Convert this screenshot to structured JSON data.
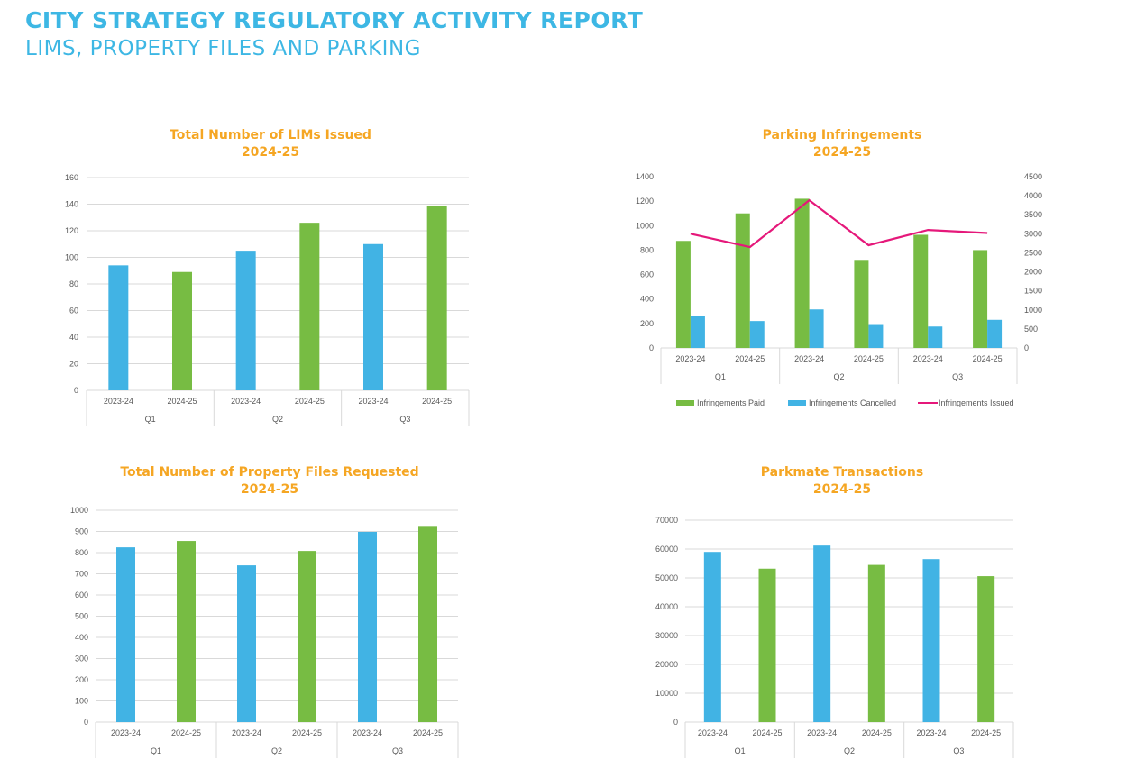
{
  "report": {
    "title": "CITY STRATEGY REGULATORY ACTIVITY REPORT",
    "subtitle": "LIMS, PROPERTY FILES AND PARKING"
  },
  "colors": {
    "blue": "#41b3e4",
    "green": "#77bc43",
    "pink": "#e5187a",
    "orange": "#f5a623",
    "heading": "#3db7e4"
  },
  "chart_data": [
    {
      "id": "lims",
      "type": "bar",
      "title": "Total Number of LIMs Issued",
      "subtitle": "2024-25",
      "categories": [
        "2023-24",
        "2024-25",
        "2023-24",
        "2024-25",
        "2023-24",
        "2024-25"
      ],
      "groups": [
        "Q1",
        "Q2",
        "Q3"
      ],
      "values": [
        94,
        89,
        105,
        126,
        110,
        139
      ],
      "bar_colors": [
        "blue",
        "green",
        "blue",
        "green",
        "blue",
        "green"
      ],
      "yticks": [
        0,
        20,
        40,
        60,
        80,
        100,
        120,
        140,
        160
      ],
      "ylim": [
        0,
        160
      ],
      "grid": true
    },
    {
      "id": "parking",
      "type": "bar",
      "title": "Parking Infringements",
      "subtitle": "2024-25",
      "categories": [
        "2023-24",
        "2024-25",
        "2023-24",
        "2024-25",
        "2023-24",
        "2024-25"
      ],
      "groups": [
        "Q1",
        "Q2",
        "Q3"
      ],
      "series": [
        {
          "name": "Infringements Paid",
          "type": "bar",
          "axis": "left",
          "color": "green",
          "values": [
            875,
            1100,
            1220,
            720,
            925,
            800
          ]
        },
        {
          "name": "Infringements Cancelled",
          "type": "bar",
          "axis": "left",
          "color": "blue",
          "values": [
            265,
            220,
            315,
            195,
            175,
            230
          ]
        },
        {
          "name": "Infringements Issued",
          "type": "line",
          "axis": "right",
          "color": "pink",
          "values": [
            3000,
            2650,
            3880,
            2700,
            3100,
            3020
          ]
        }
      ],
      "yticks": [
        0,
        200,
        400,
        600,
        800,
        1000,
        1200,
        1400
      ],
      "ylim": [
        0,
        1400
      ],
      "y2ticks": [
        0,
        500,
        1000,
        1500,
        2000,
        2500,
        3000,
        3500,
        4000,
        4500
      ],
      "y2lim": [
        0,
        4500
      ],
      "legend": "bottom",
      "grid": false
    },
    {
      "id": "property",
      "type": "bar",
      "title": "Total Number of Property Files Requested",
      "subtitle": "2024-25",
      "categories": [
        "2023-24",
        "2024-25",
        "2023-24",
        "2024-25",
        "2023-24",
        "2024-25"
      ],
      "groups": [
        "Q1",
        "Q2",
        "Q3"
      ],
      "values": [
        825,
        855,
        740,
        808,
        898,
        922
      ],
      "bar_colors": [
        "blue",
        "green",
        "blue",
        "green",
        "blue",
        "green"
      ],
      "yticks": [
        0,
        100,
        200,
        300,
        400,
        500,
        600,
        700,
        800,
        900,
        1000
      ],
      "ylim": [
        0,
        1000
      ],
      "grid": true
    },
    {
      "id": "parkmate",
      "type": "bar",
      "title": "Parkmate Transactions",
      "subtitle": "2024-25",
      "categories": [
        "2023-24",
        "2024-25",
        "2023-24",
        "2024-25",
        "2023-24",
        "2024-25"
      ],
      "groups": [
        "Q1",
        "Q2",
        "Q3"
      ],
      "values": [
        59000,
        53200,
        61200,
        54500,
        56500,
        50600
      ],
      "bar_colors": [
        "blue",
        "green",
        "blue",
        "green",
        "blue",
        "green"
      ],
      "yticks": [
        0,
        10000,
        20000,
        30000,
        40000,
        50000,
        60000,
        70000
      ],
      "ylim": [
        0,
        70000
      ],
      "grid": true
    }
  ]
}
